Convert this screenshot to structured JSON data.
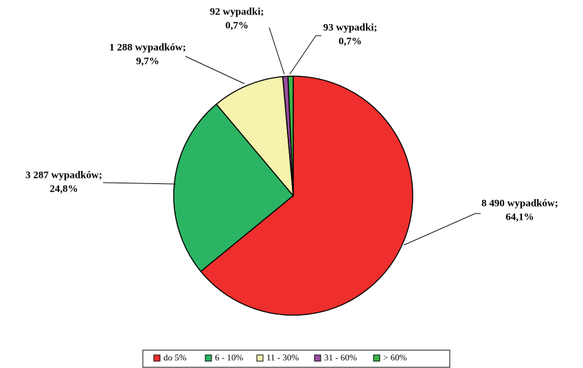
{
  "chart_data": {
    "type": "pie",
    "categories": [
      "do 5%",
      "6 - 10%",
      "11 - 30%",
      "31 - 60%",
      "> 60%"
    ],
    "values": [
      8490,
      3287,
      1288,
      92,
      93
    ],
    "value_labels": [
      "8 490 wypadków;",
      "3 287 wypadków;",
      "1 288 wypadków;",
      "92 wypadki;",
      "93 wypadki;"
    ],
    "percent_labels": [
      "64,1%",
      "24,8%",
      "9,7%",
      "0,7%",
      "0,7%"
    ],
    "colors": [
      "#ee2f2d",
      "#2bb463",
      "#f6f3ae",
      "#9a4e9f",
      "#3db54a"
    ],
    "legend": "bottom"
  }
}
